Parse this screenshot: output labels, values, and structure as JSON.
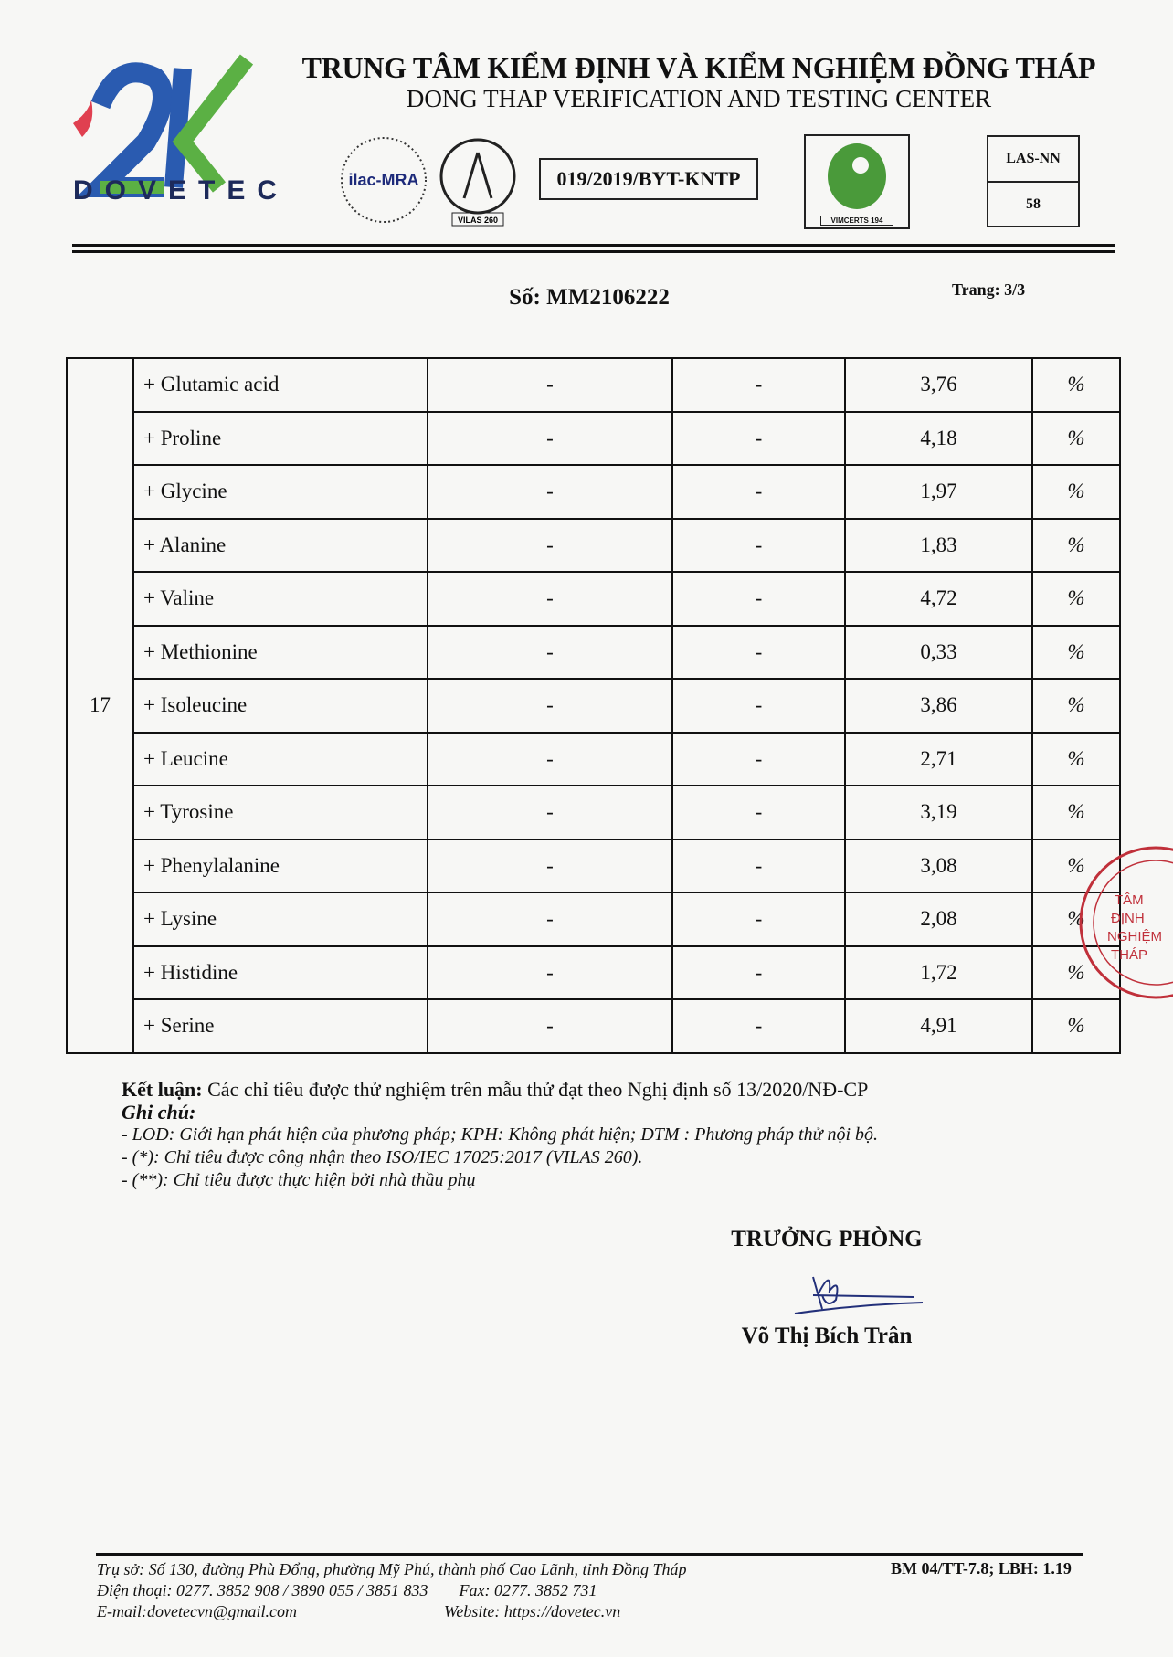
{
  "header": {
    "title": "TRUNG TÂM KIỂM ĐỊNH VÀ KIỂM NGHIỆM ĐỒNG THÁP",
    "subtitle": "DONG THAP VERIFICATION AND TESTING CENTER",
    "logo_text": "DOVETEC",
    "ilac_text": "ilac-MRA",
    "vilas_text": "VILAS 260",
    "registration": "019/2019/BYT-KNTP",
    "vimcerts_text": "VIMCERTS 194",
    "las_label": "LAS-NN",
    "las_number": "58"
  },
  "report": {
    "number": "Số: MM2106222",
    "page": "Trang: 3/3"
  },
  "table": {
    "group_no": "17",
    "rows": [
      {
        "name": "+ Glutamic acid",
        "lod": "-",
        "method": "-",
        "result": "3,76",
        "unit": "%"
      },
      {
        "name": "+ Proline",
        "lod": "-",
        "method": "-",
        "result": "4,18",
        "unit": "%"
      },
      {
        "name": "+ Glycine",
        "lod": "-",
        "method": "-",
        "result": "1,97",
        "unit": "%"
      },
      {
        "name": "+ Alanine",
        "lod": "-",
        "method": "-",
        "result": "1,83",
        "unit": "%"
      },
      {
        "name": "+ Valine",
        "lod": "-",
        "method": "-",
        "result": "4,72",
        "unit": "%"
      },
      {
        "name": "+ Methionine",
        "lod": "-",
        "method": "-",
        "result": "0,33",
        "unit": "%"
      },
      {
        "name": "+ Isoleucine",
        "lod": "-",
        "method": "-",
        "result": "3,86",
        "unit": "%"
      },
      {
        "name": "+ Leucine",
        "lod": "-",
        "method": "-",
        "result": "2,71",
        "unit": "%"
      },
      {
        "name": "+ Tyrosine",
        "lod": "-",
        "method": "-",
        "result": "3,19",
        "unit": "%"
      },
      {
        "name": "+ Phenylalanine",
        "lod": "-",
        "method": "-",
        "result": "3,08",
        "unit": "%"
      },
      {
        "name": "+ Lysine",
        "lod": "-",
        "method": "-",
        "result": "2,08",
        "unit": "%"
      },
      {
        "name": "+ Histidine",
        "lod": "-",
        "method": "-",
        "result": "1,72",
        "unit": "%"
      },
      {
        "name": "+ Serine",
        "lod": "-",
        "method": "-",
        "result": "4,91",
        "unit": "%"
      }
    ]
  },
  "conclusion": {
    "label": "Kết luận:",
    "text": " Các chỉ tiêu được thử nghiệm trên mẫu thử đạt theo Nghị định số 13/2020/NĐ-CP"
  },
  "notes": {
    "label": "Ghi chú:",
    "items": [
      "- LOD: Giới hạn phát hiện của phương pháp; KPH: Không phát hiện; DTM : Phương pháp thử nội bộ.",
      "- (*): Chỉ tiêu được công nhận theo ISO/IEC 17025:2017 (VILAS 260).",
      "- (**): Chỉ tiêu được thực hiện bởi nhà thầu phụ"
    ]
  },
  "signature": {
    "title": "TRƯỞNG PHÒNG",
    "name": "Võ Thị Bích Trân"
  },
  "stamp": {
    "text": "TRUNG TÂM KIỂM ĐỊNH VÀ KIỂM NGHIỆM TỈNH ĐỒNG THÁP",
    "color": "#c0303a"
  },
  "footer": {
    "address": "Trụ sở: Số 130, đường Phù Đổng, phường Mỹ Phú, thành phố Cao Lãnh, tỉnh Đồng Tháp",
    "phone": "Điện thoại: 0277. 3852 908 / 3890 055 / 3851 833",
    "fax": "Fax: 0277. 3852 731",
    "email": "E-mail:dovetecvn@gmail.com",
    "website": "Website: https://dovetec.vn",
    "form_code": "BM 04/TT-7.8; LBH: 1.19"
  }
}
